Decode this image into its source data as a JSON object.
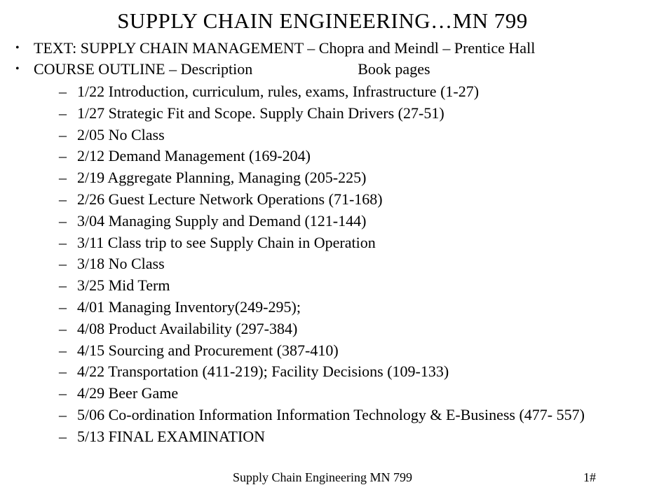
{
  "title": "SUPPLY CHAIN ENGINEERING…MN 799",
  "top_items": [
    "TEXT: SUPPLY CHAIN MANAGEMENT  – Chopra and Meindl – Prentice Hall"
  ],
  "outline_label": "COURSE OUTLINE – Description",
  "outline_pages_label": "Book pages",
  "schedule": [
    "1/22 Introduction, curriculum, rules, exams, Infrastructure (1-27)",
    "1/27 Strategic Fit and Scope. Supply Chain Drivers (27-51)",
    "2/05 No Class",
    "2/12 Demand Management (169-204)",
    "2/19 Aggregate Planning, Managing  (205-225)",
    "2/26 Guest Lecture Network Operations (71-168)",
    "3/04  Managing Supply and Demand (121-144)",
    "3/11 Class trip to see Supply Chain in Operation",
    "3/18 No Class",
    "3/25  Mid Term",
    "4/01 Managing Inventory(249-295);",
    "4/08 Product Availability (297-384)",
    "4/15 Sourcing and Procurement (387-410)",
    "4/22 Transportation (411-219); Facility Decisions (109-133)",
    "4/29 Beer Game",
    "5/06 Co-ordination Information Information Technology & E-Business (477- 557)",
    "5/13 FINAL EXAMINATION"
  ],
  "footer_text": "Supply Chain Engineering  MN 799",
  "footer_page": "1#",
  "colors": {
    "background": "#ffffff",
    "text": "#000000"
  },
  "typography": {
    "title_fontsize": 31,
    "body_fontsize": 22,
    "footer_fontsize": 18,
    "font_family": "Times New Roman"
  }
}
